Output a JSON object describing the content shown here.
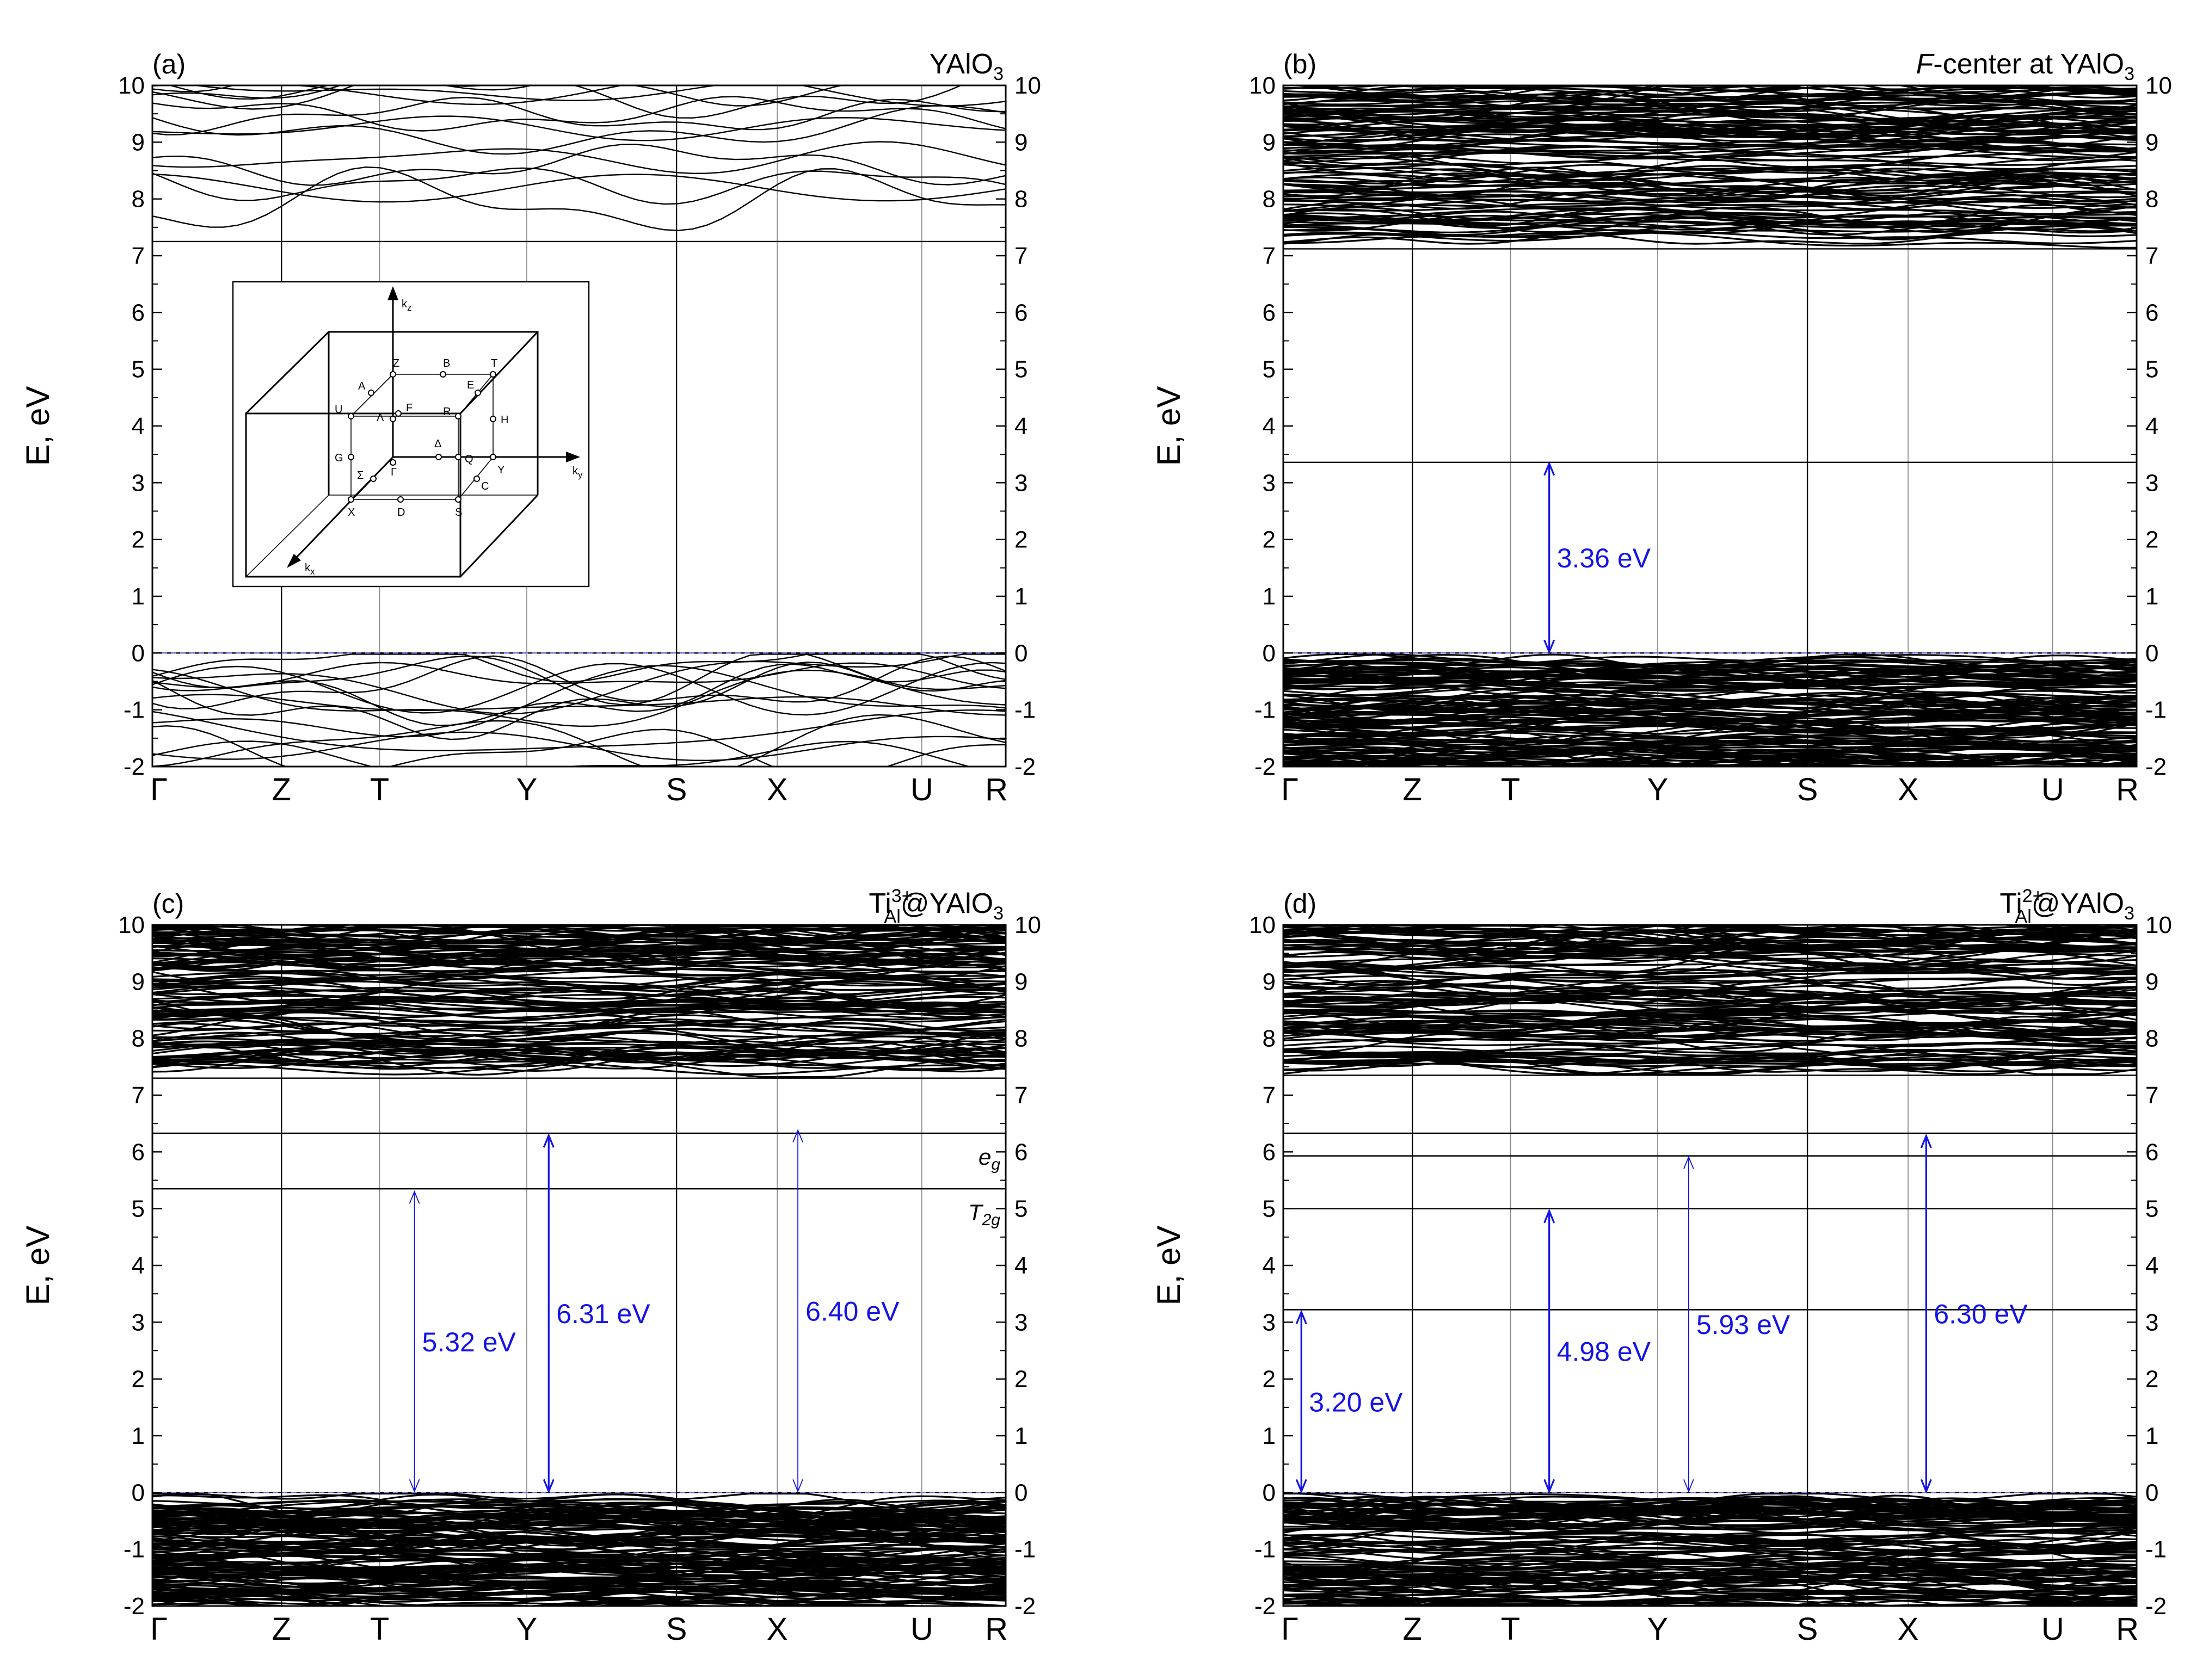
{
  "chart_data": [
    {
      "panel": "(a)",
      "type": "line",
      "title": "YAlO3",
      "title_parts": {
        "base": "YAlO",
        "sub": "3",
        "sup": "",
        "tail": ""
      },
      "ylabel": "E, eV",
      "xlabel": "",
      "ylim": [
        -2,
        10
      ],
      "y_ticks": [
        "-2",
        "-1",
        "0",
        "1",
        "2",
        "3",
        "4",
        "5",
        "6",
        "7",
        "8",
        "9",
        "10"
      ],
      "x_ticks": [
        "Γ",
        "Z",
        "T",
        "Y",
        "S",
        "X",
        "U",
        "R"
      ],
      "x_tick_positions": [
        0,
        1,
        1.76,
        2.9,
        4.06,
        4.84,
        5.96,
        6.61
      ],
      "band_density": "sparse",
      "valence_band_top": 0,
      "conduction_band_min": 7.25,
      "fermi_dashed_level": 0,
      "flat_levels": [],
      "transitions": [],
      "inset": {
        "type": "brillouin-zone",
        "axes": [
          "kz",
          "ky",
          "kx"
        ],
        "points": [
          "Z",
          "B",
          "T",
          "A",
          "E",
          "U",
          "F",
          "R",
          "Λ",
          "H",
          "G",
          "Δ",
          "Σ",
          "Γ",
          "Q",
          "C",
          "Y",
          "X",
          "D",
          "S"
        ]
      }
    },
    {
      "panel": "(b)",
      "type": "line",
      "title": "F-center at YAlO3",
      "title_parts": {
        "italic": "F",
        "base": "-center at YAlO",
        "sub": "3",
        "sup": "",
        "tail": ""
      },
      "ylabel": "E, eV",
      "xlabel": "",
      "ylim": [
        -2,
        10
      ],
      "y_ticks": [
        "-2",
        "-1",
        "0",
        "1",
        "2",
        "3",
        "4",
        "5",
        "6",
        "7",
        "8",
        "9",
        "10"
      ],
      "x_ticks": [
        "Γ",
        "Z",
        "T",
        "Y",
        "S",
        "X",
        "U",
        "R"
      ],
      "x_tick_positions": [
        0,
        1,
        1.76,
        2.9,
        4.06,
        4.84,
        5.96,
        6.61
      ],
      "band_density": "dense",
      "valence_band_top": 0,
      "conduction_band_min": 7.12,
      "fermi_dashed_level": 0,
      "flat_levels": [
        {
          "energy": 3.36,
          "label": ""
        }
      ],
      "transitions": [
        {
          "x": 2.06,
          "from": 0,
          "to": 3.36,
          "label": "3.36 eV",
          "style": "solid"
        }
      ]
    },
    {
      "panel": "(c)",
      "type": "line",
      "title": "Ti3+Al@YAlO3",
      "title_parts": {
        "base": "Ti",
        "sup": "3+",
        "sub": "Al",
        "tail": "@YAlO",
        "tail_sub": "3"
      },
      "ylabel": "E, eV",
      "xlabel": "",
      "ylim": [
        -2,
        10
      ],
      "y_ticks": [
        "-2",
        "-1",
        "0",
        "1",
        "2",
        "3",
        "4",
        "5",
        "6",
        "7",
        "8",
        "9",
        "10"
      ],
      "x_ticks": [
        "Γ",
        "Z",
        "T",
        "Y",
        "S",
        "X",
        "U",
        "R"
      ],
      "x_tick_positions": [
        0,
        1,
        1.76,
        2.9,
        4.06,
        4.84,
        5.96,
        6.61
      ],
      "band_density": "dense",
      "valence_band_top": 0,
      "conduction_band_min": 7.3,
      "fermi_dashed_level": 0,
      "flat_levels": [
        {
          "energy": 6.33,
          "label": "e",
          "label_sub": "g"
        },
        {
          "energy": 5.35,
          "label": "T",
          "label_sub": "2g"
        }
      ],
      "transitions": [
        {
          "x": 2.03,
          "from": 0,
          "to": 5.32,
          "label": "5.32 eV",
          "style": "thin"
        },
        {
          "x": 3.07,
          "from": 0,
          "to": 6.31,
          "label": "6.31 eV",
          "style": "solid"
        },
        {
          "x": 5.0,
          "from": 0,
          "to": 6.4,
          "label": "6.40 eV",
          "style": "thin"
        }
      ]
    },
    {
      "panel": "(d)",
      "type": "line",
      "title": "Ti2+Al@YAlO3",
      "title_parts": {
        "base": "Ti",
        "sup": "2+",
        "sub": "Al",
        "tail": "@YAlO",
        "tail_sub": "3"
      },
      "ylabel": "E, eV",
      "xlabel": "",
      "ylim": [
        -2,
        10
      ],
      "y_ticks": [
        "-2",
        "-1",
        "0",
        "1",
        "2",
        "3",
        "4",
        "5",
        "6",
        "7",
        "8",
        "9",
        "10"
      ],
      "x_ticks": [
        "Γ",
        "Z",
        "T",
        "Y",
        "S",
        "X",
        "U",
        "R"
      ],
      "x_tick_positions": [
        0,
        1,
        1.76,
        2.9,
        4.06,
        4.84,
        5.96,
        6.61
      ],
      "band_density": "dense",
      "valence_band_top": 0,
      "conduction_band_min": 7.35,
      "fermi_dashed_level": 0,
      "flat_levels": [
        {
          "energy": 6.33,
          "label": ""
        },
        {
          "energy": 5.93,
          "label": ""
        },
        {
          "energy": 5.0,
          "label": ""
        },
        {
          "energy": 3.22,
          "label": ""
        }
      ],
      "transitions": [
        {
          "x": 0.14,
          "from": 0,
          "to": 3.2,
          "label": "3.20 eV",
          "style": "solid"
        },
        {
          "x": 2.06,
          "from": 0,
          "to": 4.98,
          "label": "4.98 eV",
          "style": "solid"
        },
        {
          "x": 3.14,
          "from": 0,
          "to": 5.93,
          "label": "5.93 eV",
          "style": "thin"
        },
        {
          "x": 4.98,
          "from": 0,
          "to": 6.3,
          "label": "6.30 eV",
          "style": "solid"
        }
      ]
    }
  ],
  "colors": {
    "band": "#000000",
    "frame": "#000000",
    "fermi_dash": "#7a7ae6",
    "transition": "#1414e6"
  }
}
